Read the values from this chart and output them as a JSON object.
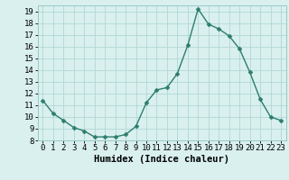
{
  "x": [
    0,
    1,
    2,
    3,
    4,
    5,
    6,
    7,
    8,
    9,
    10,
    11,
    12,
    13,
    14,
    15,
    16,
    17,
    18,
    19,
    20,
    21,
    22,
    23
  ],
  "y": [
    11.4,
    10.3,
    9.7,
    9.1,
    8.8,
    8.3,
    8.3,
    8.3,
    8.5,
    9.2,
    11.2,
    12.3,
    12.5,
    13.7,
    16.1,
    19.2,
    17.9,
    17.5,
    16.9,
    15.8,
    13.8,
    11.5,
    10.0,
    9.7
  ],
  "line_color": "#2d7d6e",
  "marker": "D",
  "marker_size": 2.5,
  "bg_color": "#d9f0ef",
  "grid_color": "#b0d8d5",
  "xlabel": "Humidex (Indice chaleur)",
  "xlim": [
    -0.5,
    23.5
  ],
  "ylim": [
    8,
    19.5
  ],
  "yticks": [
    8,
    9,
    10,
    11,
    12,
    13,
    14,
    15,
    16,
    17,
    18,
    19
  ],
  "xticks": [
    0,
    1,
    2,
    3,
    4,
    5,
    6,
    7,
    8,
    9,
    10,
    11,
    12,
    13,
    14,
    15,
    16,
    17,
    18,
    19,
    20,
    21,
    22,
    23
  ],
  "tick_fontsize": 6.5,
  "xlabel_fontsize": 7.5,
  "line_width": 1.0
}
